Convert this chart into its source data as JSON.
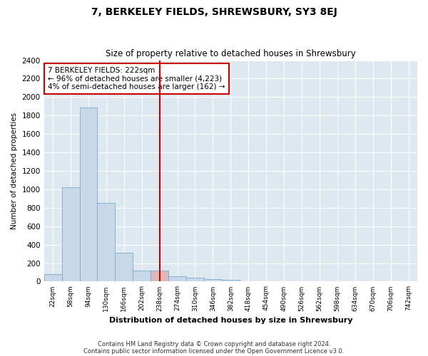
{
  "title": "7, BERKELEY FIELDS, SHREWSBURY, SY3 8EJ",
  "subtitle": "Size of property relative to detached houses in Shrewsbury",
  "xlabel": "Distribution of detached houses by size in Shrewsbury",
  "ylabel": "Number of detached properties",
  "categories": [
    "22sqm",
    "58sqm",
    "94sqm",
    "130sqm",
    "166sqm",
    "202sqm",
    "238sqm",
    "274sqm",
    "310sqm",
    "346sqm",
    "382sqm",
    "418sqm",
    "454sqm",
    "490sqm",
    "526sqm",
    "562sqm",
    "598sqm",
    "634sqm",
    "670sqm",
    "706sqm",
    "742sqm"
  ],
  "bar_values": [
    80,
    1020,
    1890,
    850,
    310,
    120,
    120,
    55,
    45,
    30,
    20,
    0,
    0,
    0,
    0,
    0,
    0,
    0,
    0,
    0,
    0
  ],
  "bar_color": "#c8d8e8",
  "bar_edge_color": "#7aabcc",
  "highlight_bar_index": 6,
  "vline_x": 6,
  "vline_color": "#cc0000",
  "annotation_box_text": "7 BERKELEY FIELDS: 222sqm\n← 96% of detached houses are smaller (4,223)\n4% of semi-detached houses are larger (162) →",
  "annotation_box_color": "#cc0000",
  "annotation_text_size": 7.5,
  "ylim": [
    0,
    2400
  ],
  "yticks": [
    0,
    200,
    400,
    600,
    800,
    1000,
    1200,
    1400,
    1600,
    1800,
    2000,
    2200,
    2400
  ],
  "background_color": "#dde8f0",
  "grid_color": "#ffffff",
  "footer_line1": "Contains HM Land Registry data © Crown copyright and database right 2024.",
  "footer_line2": "Contains public sector information licensed under the Open Government Licence v3.0."
}
